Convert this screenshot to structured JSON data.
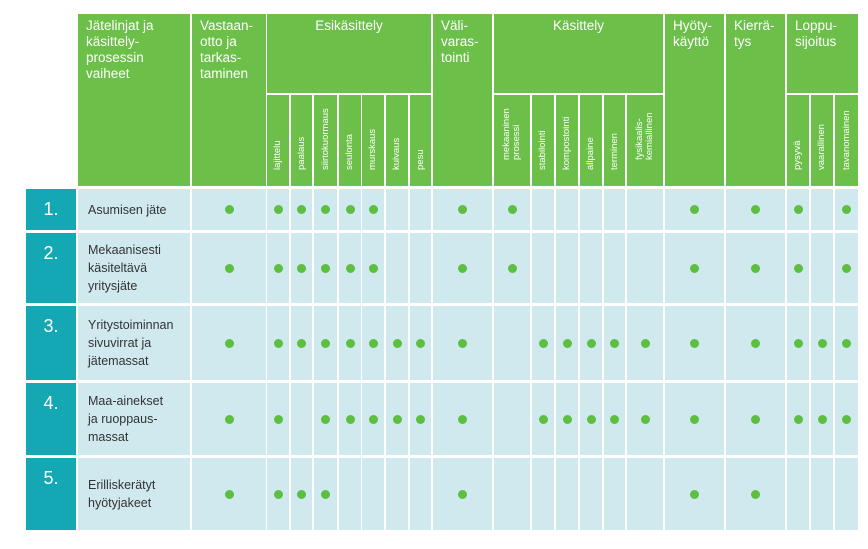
{
  "header": {
    "first": "Jätelinjat ja\nkäsittely-\nprosessin\nvaiheet",
    "groups": [
      {
        "id": "vastaanotto",
        "label": "Vastaan-\notto ja\ntarkas-\ntaminen"
      },
      {
        "id": "esikasittely",
        "label": "Esikäsittely"
      },
      {
        "id": "valivarastointi",
        "label": "Väli-\nvaras-\ntointi"
      },
      {
        "id": "kasittely",
        "label": "Käsittely"
      },
      {
        "id": "hyotykaytto",
        "label": "Hyöty-\nkäyttö"
      },
      {
        "id": "kierratys",
        "label": "Kierrä-\ntys"
      },
      {
        "id": "loppusijoitus",
        "label": "Loppu-\nsijoitus"
      }
    ],
    "sub": {
      "esikasittely": [
        "lajittelu",
        "paalaus",
        "siirtokuormaus",
        "seulonta",
        "murskaus",
        "kuivaus",
        "pesu"
      ],
      "kasittely": [
        "mekaaninen\nprosessi",
        "stabilointi",
        "kompostointi",
        "allpaine",
        "terminen",
        "fysikaalis-\nkemiallinen"
      ],
      "loppusijoitus": [
        "pysyvä",
        "vaarallinen",
        "tavanomainen"
      ]
    }
  },
  "rows": [
    {
      "num": "1.",
      "name": "Asumisen jäte",
      "dots": [
        1,
        1,
        1,
        1,
        1,
        1,
        0,
        0,
        1,
        1,
        0,
        0,
        0,
        0,
        0,
        1,
        1,
        1,
        0,
        1
      ]
    },
    {
      "num": "2.",
      "name": "Mekaanisesti\nkäsiteltävä\nyritysjäte",
      "dots": [
        1,
        1,
        1,
        1,
        1,
        1,
        0,
        0,
        1,
        1,
        0,
        0,
        0,
        0,
        0,
        1,
        1,
        1,
        0,
        1
      ]
    },
    {
      "num": "3.",
      "name": "Yritystoiminnan\nsivuvirrat ja\njätemassat",
      "dots": [
        1,
        1,
        1,
        1,
        1,
        1,
        1,
        1,
        1,
        0,
        1,
        1,
        1,
        1,
        1,
        1,
        1,
        1,
        1,
        1
      ]
    },
    {
      "num": "4.",
      "name": "Maa-ainekset\nja ruoppaus-\nmassat",
      "dots": [
        1,
        1,
        0,
        1,
        1,
        1,
        1,
        1,
        1,
        0,
        1,
        1,
        1,
        1,
        1,
        1,
        1,
        1,
        1,
        1
      ]
    },
    {
      "num": "5.",
      "name": "Erilliskerätyt\nhyötyjakeet",
      "dots": [
        1,
        1,
        1,
        1,
        0,
        0,
        0,
        0,
        1,
        0,
        0,
        0,
        0,
        0,
        0,
        1,
        1,
        0,
        0,
        0
      ]
    }
  ],
  "colors": {
    "header": "#6cc04a",
    "number": "#14a7b4",
    "cell": "#cfe9ef",
    "dot": "#5cbf3f"
  }
}
